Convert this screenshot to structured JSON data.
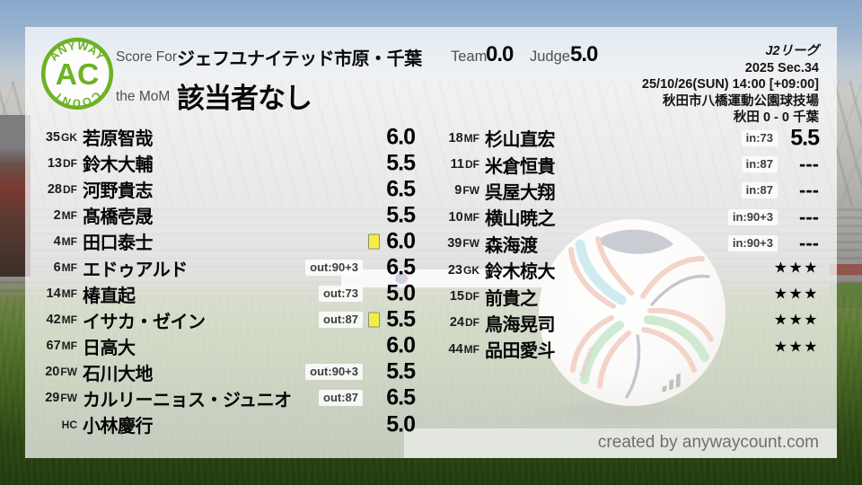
{
  "header": {
    "logo": {
      "arc_top": "ANYWAY",
      "center": "AC",
      "arc_bottom": "COUNT"
    },
    "score_for_label": "Score For",
    "team_name": "ジェフユナイテッド市原・千葉",
    "mom_label": "the MoM",
    "mom_value": "該当者なし",
    "team_label": "Team",
    "team_score": "0.0",
    "judge_label": "Judge",
    "judge_score": "5.0"
  },
  "match_info": {
    "league": "J2リーグ",
    "season": "2025 Sec.34",
    "datetime": "25/10/26(SUN) 14:00 [+09:00]",
    "venue": "秋田市八橋運動公園球技場",
    "result": "秋田 0 - 0 千葉"
  },
  "starters": [
    {
      "num": "35",
      "pos": "GK",
      "name": "若原智哉",
      "badge": "",
      "card": false,
      "rating": "6.0"
    },
    {
      "num": "13",
      "pos": "DF",
      "name": "鈴木大輔",
      "badge": "",
      "card": false,
      "rating": "5.5"
    },
    {
      "num": "28",
      "pos": "DF",
      "name": "河野貴志",
      "badge": "",
      "card": false,
      "rating": "6.5"
    },
    {
      "num": "2",
      "pos": "MF",
      "name": "髙橋壱晟",
      "badge": "",
      "card": false,
      "rating": "5.5"
    },
    {
      "num": "4",
      "pos": "MF",
      "name": "田口泰士",
      "badge": "",
      "card": true,
      "rating": "6.0"
    },
    {
      "num": "6",
      "pos": "MF",
      "name": "エドゥアルド",
      "badge": "out:90+3",
      "card": false,
      "rating": "6.5"
    },
    {
      "num": "14",
      "pos": "MF",
      "name": "椿直起",
      "badge": "out:73",
      "card": false,
      "rating": "5.0"
    },
    {
      "num": "42",
      "pos": "MF",
      "name": "イサカ・ゼイン",
      "badge": "out:87",
      "card": true,
      "rating": "5.5"
    },
    {
      "num": "67",
      "pos": "MF",
      "name": "日高大",
      "badge": "",
      "card": false,
      "rating": "6.0"
    },
    {
      "num": "20",
      "pos": "FW",
      "name": "石川大地",
      "badge": "out:90+3",
      "card": false,
      "rating": "5.5"
    },
    {
      "num": "29",
      "pos": "FW",
      "name": "カルリーニョス・ジュニオ",
      "badge": "out:87",
      "card": false,
      "rating": "6.5"
    },
    {
      "num": "",
      "pos": "HC",
      "name": "小林慶行",
      "badge": "",
      "card": false,
      "rating": "5.0"
    }
  ],
  "substitutes": [
    {
      "num": "18",
      "pos": "MF",
      "name": "杉山直宏",
      "badge": "in:73",
      "card": false,
      "rating": "5.5"
    },
    {
      "num": "11",
      "pos": "DF",
      "name": "米倉恒貴",
      "badge": "in:87",
      "card": false,
      "rating": "---"
    },
    {
      "num": "9",
      "pos": "FW",
      "name": "呉屋大翔",
      "badge": "in:87",
      "card": false,
      "rating": "---"
    },
    {
      "num": "10",
      "pos": "MF",
      "name": "横山暁之",
      "badge": "in:90+3",
      "card": false,
      "rating": "---"
    },
    {
      "num": "39",
      "pos": "FW",
      "name": "森海渡",
      "badge": "in:90+3",
      "card": false,
      "rating": "---"
    },
    {
      "num": "23",
      "pos": "GK",
      "name": "鈴木椋大",
      "badge": "",
      "card": false,
      "rating": "★★★"
    },
    {
      "num": "15",
      "pos": "DF",
      "name": "前貴之",
      "badge": "",
      "card": false,
      "rating": "★★★"
    },
    {
      "num": "24",
      "pos": "DF",
      "name": "鳥海晃司",
      "badge": "",
      "card": false,
      "rating": "★★★"
    },
    {
      "num": "44",
      "pos": "MF",
      "name": "品田愛斗",
      "badge": "",
      "card": false,
      "rating": "★★★"
    }
  ],
  "footer": {
    "credit": "created by anywaycount.com"
  },
  "colors": {
    "logo_green": "#6db224",
    "card_yellow": "#f3ee43",
    "panel_white": "rgba(255,255,255,0.73)"
  }
}
